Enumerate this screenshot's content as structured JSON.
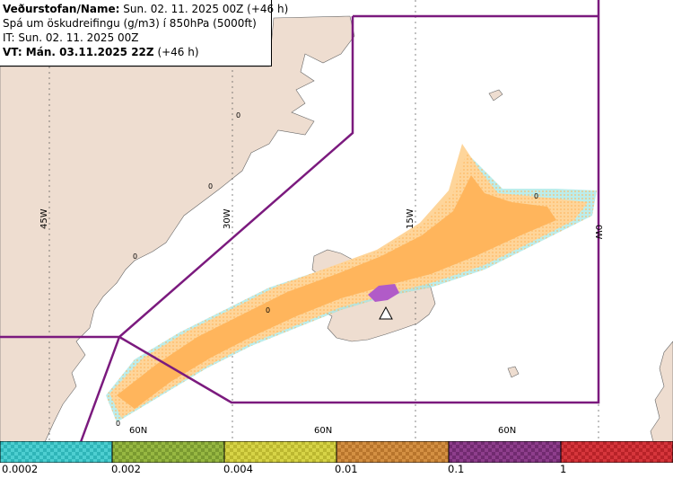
{
  "header": {
    "line1_label": "Veðurstofan/Name:",
    "line1_value": "Sun. 02. 11. 2025 00Z (+46 h)",
    "line2": "Spá um öskudreifingu (g/m3) í 850hPa (5000ft)",
    "line3": "IT: Sun. 02. 11. 2025 00Z",
    "line4_label": "VT: Mán. 03.11.2025 22Z",
    "line4_value": "(+46 h)"
  },
  "map": {
    "longitude_labels": [
      "45W",
      "30W",
      "15W",
      "0W"
    ],
    "latitude_labels": [
      "60N",
      "60N",
      "60N"
    ],
    "contour_labels": [
      "0",
      "0",
      "0",
      "0",
      "0",
      "0"
    ],
    "colors": {
      "land": "#eeddd0",
      "sea": "#ffffff",
      "boundary": "#7b1a7e",
      "ash_main": "#ffb55c",
      "ash_light": "#fed59a",
      "ash_trace": "#9fe6e2",
      "ash_high": "#b15bc8"
    }
  },
  "legend": {
    "segments": [
      {
        "color": "#4ecfd1"
      },
      {
        "color": "#97b842"
      },
      {
        "color": "#d7d447"
      },
      {
        "color": "#d49043"
      },
      {
        "color": "#8e3e8c"
      },
      {
        "color": "#d6363c"
      }
    ],
    "labels": [
      "0.0002",
      "0.002",
      "0.004",
      "0.01",
      "0.1",
      "1"
    ]
  }
}
